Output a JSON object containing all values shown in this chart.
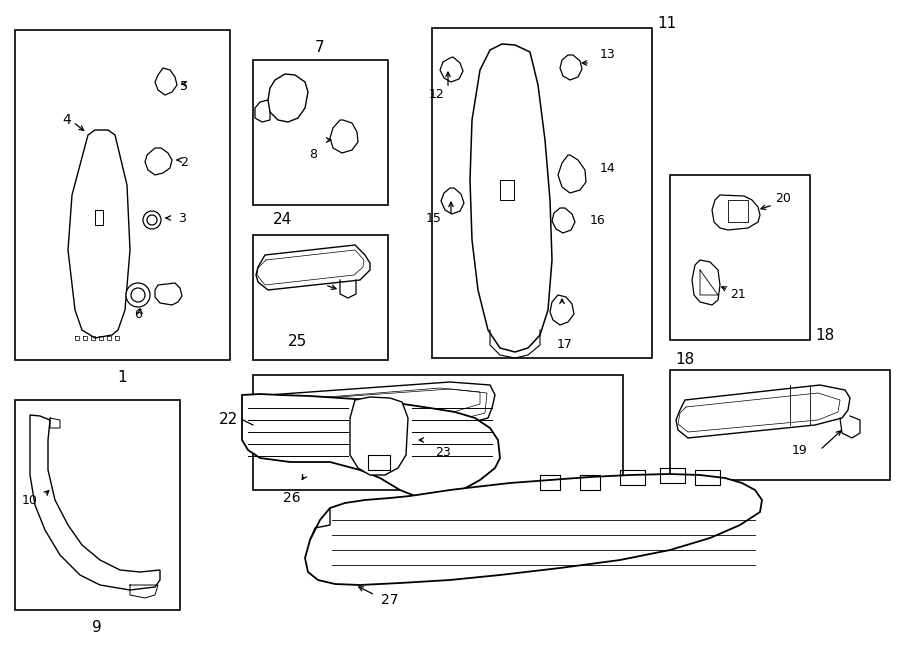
{
  "title": "",
  "bg_color": "#ffffff",
  "line_color": "#000000",
  "text_color": "#000000",
  "fig_width": 9.0,
  "fig_height": 6.61,
  "dpi": 100
}
